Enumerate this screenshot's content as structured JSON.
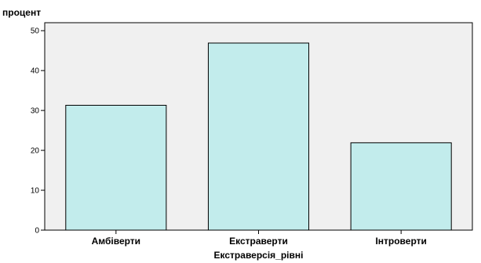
{
  "chart_data": {
    "type": "bar",
    "title": "",
    "xlabel": "Екстраверсія_рівні",
    "ylabel": "процент",
    "categories": [
      "Амбіверти",
      "Екстраверти",
      "Інтроверти"
    ],
    "values": [
      31.3,
      46.9,
      21.9
    ],
    "ylim": [
      0,
      52
    ],
    "yticks": [
      0,
      10,
      20,
      30,
      40,
      50
    ],
    "grid": false,
    "colors": {
      "bar_fill": "#c2ecec",
      "bar_stroke": "#000000",
      "plot_background": "#f0f0f0"
    }
  }
}
